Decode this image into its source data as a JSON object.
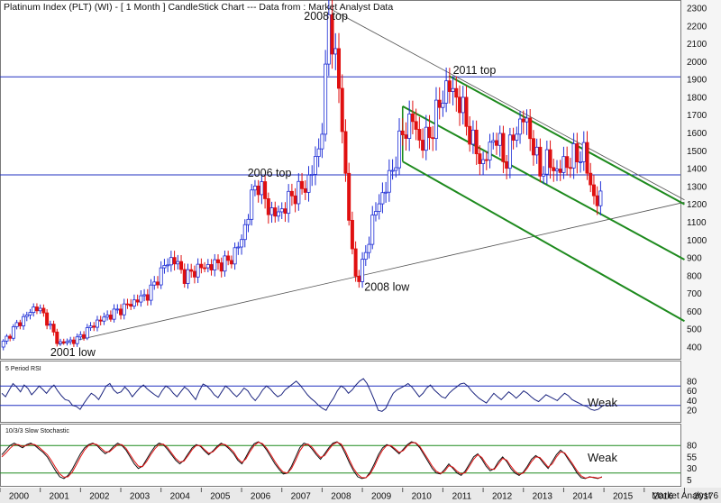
{
  "header": {
    "title": "Platinum Index (PLT) (WI) -  [ 1 Month ] CandleStick Chart --- Data from : Market Analyst Data"
  },
  "footer": {
    "brand": "Market Analyst 6"
  },
  "colors": {
    "up": "#1f2fd6",
    "down": "#e01010",
    "fib": "#1d8a1d",
    "trend": "#555555",
    "hline": "#2030c0",
    "rsi": "#1a237e",
    "stoch_k": "#101010",
    "stoch_d": "#e01010"
  },
  "chart_data": [
    {
      "type": "candlestick",
      "panel": "price",
      "ylim": [
        300,
        2300
      ],
      "yticks": [
        400,
        500,
        600,
        700,
        800,
        900,
        1000,
        1100,
        1200,
        1300,
        1400,
        1500,
        1600,
        1700,
        1800,
        1900,
        2000,
        2100,
        2200,
        2300
      ],
      "xlim": [
        2000.0,
        2016.9
      ],
      "x_ticks": [
        "2000",
        "2001",
        "2002",
        "2003",
        "2004",
        "2005",
        "2006",
        "2007",
        "2008",
        "2009",
        "2010",
        "2011",
        "2012",
        "2013",
        "2014",
        "2015",
        "2016",
        "2017"
      ],
      "anchors": [
        [
          2000.0,
          400
        ],
        [
          2000.4,
          520
        ],
        [
          2000.9,
          630
        ],
        [
          2001.15,
          560
        ],
        [
          2001.45,
          420
        ],
        [
          2001.9,
          440
        ],
        [
          2002.4,
          540
        ],
        [
          2002.9,
          600
        ],
        [
          2003.3,
          650
        ],
        [
          2003.7,
          700
        ],
        [
          2004.1,
          860
        ],
        [
          2004.3,
          900
        ],
        [
          2004.6,
          790
        ],
        [
          2004.9,
          840
        ],
        [
          2005.3,
          860
        ],
        [
          2005.7,
          880
        ],
        [
          2006.0,
          1000
        ],
        [
          2006.3,
          1280
        ],
        [
          2006.4,
          1330
        ],
        [
          2006.7,
          1160
        ],
        [
          2006.9,
          1140
        ],
        [
          2007.3,
          1260
        ],
        [
          2007.6,
          1300
        ],
        [
          2007.9,
          1480
        ],
        [
          2008.05,
          1750
        ],
        [
          2008.17,
          2280
        ],
        [
          2008.3,
          2050
        ],
        [
          2008.45,
          1800
        ],
        [
          2008.6,
          1300
        ],
        [
          2008.8,
          800
        ],
        [
          2008.95,
          800
        ],
        [
          2009.3,
          1150
        ],
        [
          2009.7,
          1360
        ],
        [
          2010.0,
          1600
        ],
        [
          2010.25,
          1680
        ],
        [
          2010.45,
          1530
        ],
        [
          2010.7,
          1600
        ],
        [
          2011.0,
          1820
        ],
        [
          2011.15,
          1860
        ],
        [
          2011.35,
          1800
        ],
        [
          2011.5,
          1720
        ],
        [
          2011.75,
          1540
        ],
        [
          2012.0,
          1420
        ],
        [
          2012.3,
          1600
        ],
        [
          2012.55,
          1430
        ],
        [
          2012.75,
          1580
        ],
        [
          2013.0,
          1690
        ],
        [
          2013.2,
          1570
        ],
        [
          2013.4,
          1380
        ],
        [
          2013.6,
          1450
        ],
        [
          2013.8,
          1380
        ],
        [
          2014.0,
          1420
        ],
        [
          2014.25,
          1460
        ],
        [
          2014.5,
          1490
        ],
        [
          2014.65,
          1320
        ],
        [
          2014.8,
          1210
        ],
        [
          2014.95,
          1230
        ]
      ],
      "horizontal_lines": [
        1915,
        1365
      ],
      "trend_lines": [
        {
          "from": [
            2001.45,
            415
          ],
          "to": [
            2017.0,
            1212
          ]
        },
        {
          "from": [
            2008.17,
            2300
          ],
          "to": [
            2017.0,
            1225
          ]
        }
      ],
      "pitchfork_lines": [
        {
          "from": [
            2011.15,
            1920
          ],
          "to": [
            2017.0,
            1200
          ]
        },
        {
          "from": [
            2010.0,
            1750
          ],
          "to": [
            2017.0,
            890
          ]
        },
        {
          "from": [
            2010.0,
            1440
          ],
          "to": [
            2017.0,
            545
          ]
        }
      ],
      "annotations": [
        {
          "text": "2008 top",
          "x": 2007.55,
          "y": 2235
        },
        {
          "text": "2011 top",
          "x": 2011.25,
          "y": 1930
        },
        {
          "text": "2006 top",
          "x": 2006.15,
          "y": 1355
        },
        {
          "text": "2008 low",
          "x": 2009.05,
          "y": 715
        },
        {
          "text": "2001 low",
          "x": 2001.25,
          "y": 350
        }
      ]
    },
    {
      "type": "line",
      "panel": "rsi",
      "title": "5 Period RSI",
      "ylim": [
        0,
        100
      ],
      "yticks": [
        20,
        40,
        60,
        80
      ],
      "levels": [
        70,
        30
      ],
      "label": "Weak",
      "values": [
        55,
        48,
        62,
        75,
        68,
        58,
        72,
        65,
        52,
        60,
        70,
        63,
        55,
        65,
        72,
        60,
        50,
        42,
        40,
        30,
        28,
        22,
        34,
        45,
        55,
        50,
        42,
        56,
        70,
        75,
        62,
        55,
        58,
        68,
        60,
        48,
        57,
        66,
        72,
        64,
        58,
        52,
        47,
        60,
        70,
        65,
        55,
        48,
        58,
        68,
        62,
        52,
        42,
        60,
        74,
        70,
        62,
        52,
        46,
        58,
        70,
        64,
        55,
        48,
        56,
        66,
        60,
        48,
        40,
        50,
        62,
        70,
        64,
        55,
        48,
        52,
        62,
        68,
        74,
        80,
        72,
        62,
        52,
        44,
        38,
        30,
        24,
        20,
        34,
        45,
        60,
        70,
        65,
        55,
        62,
        72,
        80,
        85,
        75,
        58,
        40,
        20,
        18,
        24,
        40,
        55,
        62,
        66,
        70,
        75,
        68,
        58,
        48,
        55,
        66,
        72,
        62,
        55,
        48,
        45,
        55,
        62,
        68,
        74,
        76,
        70,
        60,
        52,
        45,
        40,
        35,
        45,
        55,
        48,
        42,
        50,
        58,
        52,
        45,
        52,
        60,
        55,
        48,
        42,
        38,
        45,
        52,
        48,
        44,
        40,
        48,
        55,
        50,
        42,
        38,
        34,
        30,
        28,
        22,
        20,
        22,
        28
      ]
    },
    {
      "type": "line",
      "panel": "stochastic",
      "title": "10/3/3 Slow Stochastic",
      "ylim": [
        0,
        100
      ],
      "yticks": [
        5,
        30,
        55,
        80
      ],
      "levels": [
        80,
        20
      ],
      "label": "Weak",
      "series": [
        {
          "values": [
            60,
            70,
            80,
            85,
            80,
            75,
            82,
            85,
            80,
            72,
            65,
            55,
            40,
            25,
            12,
            8,
            15,
            28,
            45,
            62,
            75,
            82,
            85,
            80,
            70,
            62,
            68,
            78,
            85,
            80,
            70,
            55,
            40,
            30,
            35,
            50,
            65,
            78,
            85,
            82,
            72,
            60,
            48,
            40,
            48,
            62,
            75,
            82,
            78,
            68,
            60,
            68,
            78,
            85,
            80,
            72,
            62,
            48,
            40,
            55,
            72,
            84,
            88,
            82,
            70,
            55,
            40,
            28,
            18,
            20,
            35,
            55,
            75,
            85,
            82,
            72,
            60,
            50,
            62,
            75,
            85,
            88,
            80,
            62,
            42,
            25,
            12,
            8,
            10,
            22,
            40,
            60,
            75,
            82,
            78,
            70,
            62,
            72,
            82,
            88,
            85,
            75,
            60,
            45,
            30,
            20,
            18,
            28,
            40,
            30,
            20,
            15,
            25,
            40,
            55,
            62,
            50,
            35,
            25,
            30,
            45,
            55,
            45,
            30,
            20,
            15,
            22,
            35,
            50,
            58,
            52,
            40,
            30,
            45,
            60,
            70,
            62,
            48,
            35,
            20,
            10,
            8,
            12,
            10,
            8,
            12
          ]
        },
        {
          "values": [
            55,
            64,
            74,
            82,
            82,
            78,
            80,
            83,
            82,
            76,
            68,
            60,
            47,
            32,
            18,
            11,
            12,
            22,
            38,
            55,
            70,
            80,
            84,
            82,
            74,
            66,
            66,
            74,
            82,
            82,
            74,
            60,
            46,
            35,
            34,
            45,
            60,
            73,
            82,
            83,
            76,
            64,
            52,
            44,
            46,
            58,
            71,
            80,
            80,
            71,
            63,
            66,
            75,
            83,
            82,
            75,
            66,
            52,
            43,
            51,
            67,
            80,
            87,
            84,
            74,
            60,
            45,
            32,
            22,
            20,
            30,
            48,
            68,
            81,
            83,
            76,
            64,
            54,
            58,
            71,
            82,
            87,
            83,
            68,
            48,
            30,
            17,
            10,
            10,
            18,
            34,
            54,
            70,
            80,
            80,
            73,
            65,
            69,
            79,
            86,
            86,
            78,
            64,
            50,
            35,
            24,
            19,
            24,
            36,
            33,
            24,
            18,
            21,
            35,
            50,
            60,
            54,
            40,
            29,
            28,
            40,
            52,
            48,
            35,
            24,
            17,
            20,
            31,
            45,
            55,
            54,
            44,
            33,
            40,
            55,
            66,
            64,
            52,
            39,
            25,
            14,
            9,
            11,
            11,
            9,
            11
          ]
        }
      ]
    }
  ]
}
